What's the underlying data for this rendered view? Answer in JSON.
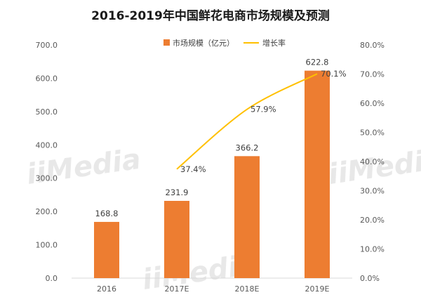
{
  "title": "2016-2019年中国鲜花电商市场规模及预测",
  "watermark": "iiMedia",
  "colors": {
    "bar": "#ed7d31",
    "line": "#ffc000",
    "axis": "#d9d9d9"
  },
  "chart_data": {
    "type": "bar",
    "categories": [
      "2016",
      "2017E",
      "2018E",
      "2019E"
    ],
    "series": [
      {
        "name": "市场规模（亿元）",
        "type": "bar",
        "axis": "left",
        "values": [
          168.8,
          231.9,
          366.2,
          622.8
        ],
        "labels": [
          "168.8",
          "231.9",
          "366.2",
          "622.8"
        ]
      },
      {
        "name": "增长率",
        "type": "line",
        "axis": "right",
        "values": [
          null,
          37.4,
          57.9,
          70.1
        ],
        "labels": [
          "",
          "37.4%",
          "57.9%",
          "70.1%"
        ]
      }
    ],
    "y_left": {
      "min": 0,
      "max": 700,
      "step": 100,
      "tick_labels": [
        "0.0",
        "100.0",
        "200.0",
        "300.0",
        "400.0",
        "500.0",
        "600.0",
        "700.0"
      ]
    },
    "y_right": {
      "min": 0,
      "max": 80,
      "step": 10,
      "tick_labels": [
        "0.0%",
        "10.0%",
        "20.0%",
        "30.0%",
        "40.0%",
        "50.0%",
        "60.0%",
        "70.0%",
        "80.0%"
      ]
    },
    "legend_position": "top-center",
    "grid": false
  }
}
